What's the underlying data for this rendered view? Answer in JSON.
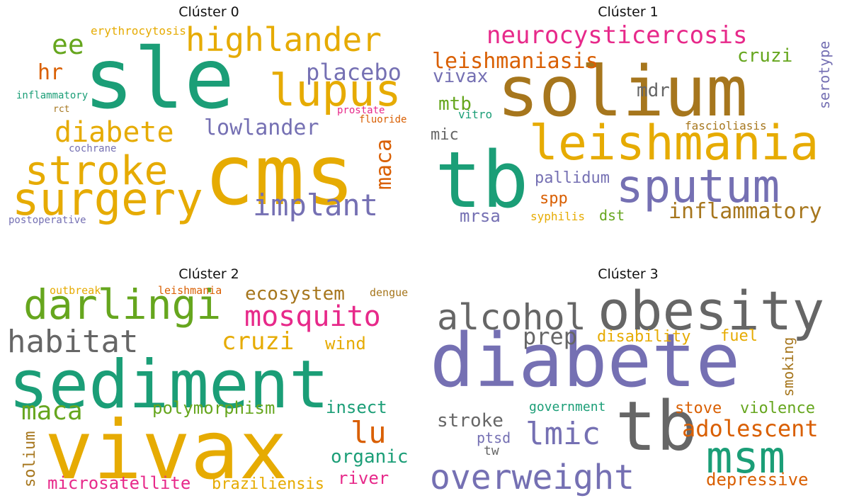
{
  "chart_data": [
    {
      "type": "wordcloud",
      "title": "Clúster 0",
      "words": [
        {
          "text": "sle",
          "color": "#1b9e77"
        },
        {
          "text": "cms",
          "color": "#e6ab02"
        },
        {
          "text": "highlander",
          "color": "#e6ab02"
        },
        {
          "text": "lupus",
          "color": "#e6ab02"
        },
        {
          "text": "surgery",
          "color": "#e6ab02"
        },
        {
          "text": "stroke",
          "color": "#e6ab02"
        },
        {
          "text": "diabete",
          "color": "#e6ab02"
        },
        {
          "text": "implant",
          "color": "#7570b3"
        },
        {
          "text": "placebo",
          "color": "#7570b3"
        },
        {
          "text": "lowlander",
          "color": "#7570b3"
        },
        {
          "text": "ee",
          "color": "#66a61e"
        },
        {
          "text": "hr",
          "color": "#d95f02"
        },
        {
          "text": "maca",
          "color": "#d95f02"
        },
        {
          "text": "erythrocytosis",
          "color": "#e6ab02"
        },
        {
          "text": "inflammatory",
          "color": "#1b9e77"
        },
        {
          "text": "rct",
          "color": "#a6761d"
        },
        {
          "text": "cochrane",
          "color": "#7570b3"
        },
        {
          "text": "prostate",
          "color": "#e7298a"
        },
        {
          "text": "fluoride",
          "color": "#d95f02"
        },
        {
          "text": "postoperative",
          "color": "#7570b3"
        }
      ]
    },
    {
      "type": "wordcloud",
      "title": "Clúster 1",
      "words": [
        {
          "text": "solium",
          "color": "#a6761d"
        },
        {
          "text": "tb",
          "color": "#1b9e77"
        },
        {
          "text": "leishmania",
          "color": "#e6ab02"
        },
        {
          "text": "sputum",
          "color": "#7570b3"
        },
        {
          "text": "neurocysticercosis",
          "color": "#e7298a"
        },
        {
          "text": "leishmaniasis",
          "color": "#d95f02"
        },
        {
          "text": "inflammatory",
          "color": "#a6761d"
        },
        {
          "text": "cruzi",
          "color": "#66a61e"
        },
        {
          "text": "vivax",
          "color": "#7570b3"
        },
        {
          "text": "mdr",
          "color": "#666666"
        },
        {
          "text": "mtb",
          "color": "#66a61e"
        },
        {
          "text": "mic",
          "color": "#666666"
        },
        {
          "text": "vitro",
          "color": "#1b9e77"
        },
        {
          "text": "pallidum",
          "color": "#7570b3"
        },
        {
          "text": "spp",
          "color": "#d95f02"
        },
        {
          "text": "mrsa",
          "color": "#7570b3"
        },
        {
          "text": "syphilis",
          "color": "#e6ab02"
        },
        {
          "text": "dst",
          "color": "#66a61e"
        },
        {
          "text": "fascioliasis",
          "color": "#a6761d"
        },
        {
          "text": "serotype",
          "color": "#7570b3"
        }
      ]
    },
    {
      "type": "wordcloud",
      "title": "Clúster 2",
      "words": [
        {
          "text": "sediment",
          "color": "#1b9e77"
        },
        {
          "text": "vivax",
          "color": "#e6ab02"
        },
        {
          "text": "darlingi",
          "color": "#66a61e"
        },
        {
          "text": "mosquito",
          "color": "#e7298a"
        },
        {
          "text": "habitat",
          "color": "#666666"
        },
        {
          "text": "cruzi",
          "color": "#e6ab02"
        },
        {
          "text": "maca",
          "color": "#66a61e"
        },
        {
          "text": "lu",
          "color": "#d95f02"
        },
        {
          "text": "polymorphism",
          "color": "#66a61e"
        },
        {
          "text": "insect",
          "color": "#1b9e77"
        },
        {
          "text": "organic",
          "color": "#1b9e77"
        },
        {
          "text": "ecosystem",
          "color": "#a6761d"
        },
        {
          "text": "wind",
          "color": "#e6ab02"
        },
        {
          "text": "microsatellite",
          "color": "#e7298a"
        },
        {
          "text": "braziliensis",
          "color": "#e6ab02"
        },
        {
          "text": "river",
          "color": "#e7298a"
        },
        {
          "text": "solium",
          "color": "#a6761d"
        },
        {
          "text": "outbreak",
          "color": "#e6ab02"
        },
        {
          "text": "leishmania",
          "color": "#d95f02"
        },
        {
          "text": "dengue",
          "color": "#a6761d"
        }
      ]
    },
    {
      "type": "wordcloud",
      "title": "Clúster 3",
      "words": [
        {
          "text": "diabete",
          "color": "#7570b3"
        },
        {
          "text": "obesity",
          "color": "#666666"
        },
        {
          "text": "alcohol",
          "color": "#666666"
        },
        {
          "text": "tb",
          "color": "#666666"
        },
        {
          "text": "msm",
          "color": "#1b9e77"
        },
        {
          "text": "overweight",
          "color": "#7570b3"
        },
        {
          "text": "lmic",
          "color": "#7570b3"
        },
        {
          "text": "adolescent",
          "color": "#d95f02"
        },
        {
          "text": "prep",
          "color": "#666666"
        },
        {
          "text": "disability",
          "color": "#e6ab02"
        },
        {
          "text": "fuel",
          "color": "#e6ab02"
        },
        {
          "text": "smoking",
          "color": "#a6761d"
        },
        {
          "text": "stroke",
          "color": "#666666"
        },
        {
          "text": "government",
          "color": "#1b9e77"
        },
        {
          "text": "stove",
          "color": "#d95f02"
        },
        {
          "text": "violence",
          "color": "#66a61e"
        },
        {
          "text": "ptsd",
          "color": "#7570b3"
        },
        {
          "text": "tw",
          "color": "#666666"
        },
        {
          "text": "depressive",
          "color": "#d95f02"
        }
      ]
    }
  ]
}
